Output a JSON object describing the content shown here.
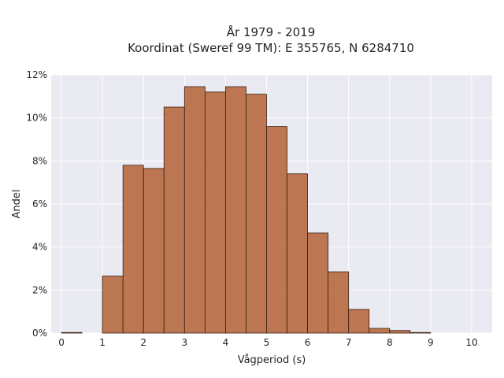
{
  "chart_data": {
    "type": "bar",
    "title": "År 1979 - 2019",
    "subtitle": "Koordinat (Sweref 99 TM): E 355765, N 6284710",
    "xlabel": "Vågperiod (s)",
    "ylabel": "Andel",
    "bin_width": 0.5,
    "bin_starts": [
      0,
      0.5,
      1,
      1.5,
      2,
      2.5,
      3,
      3.5,
      4,
      4.5,
      5,
      5.5,
      6,
      6.5,
      7,
      7.5,
      8,
      8.5,
      9,
      9.5
    ],
    "values": [
      0.03,
      0,
      2.65,
      7.8,
      7.65,
      10.5,
      11.45,
      11.2,
      11.45,
      11.1,
      9.6,
      7.4,
      4.65,
      2.85,
      1.1,
      0.22,
      0.12,
      0.03,
      0,
      0
    ],
    "xlim": [
      -0.25,
      10.5
    ],
    "ylim": [
      0,
      12
    ],
    "x_ticks": [
      "0",
      "1",
      "2",
      "3",
      "4",
      "5",
      "6",
      "7",
      "8",
      "9",
      "10"
    ],
    "y_ticks": [
      "0%",
      "2%",
      "4%",
      "6%",
      "8%",
      "10%",
      "12%"
    ],
    "grid": true,
    "colors": {
      "bar": "#b5653a",
      "bar_edge": "#3a2214",
      "plot_bg": "#eaeaf2",
      "grid": "#ffffff"
    }
  }
}
